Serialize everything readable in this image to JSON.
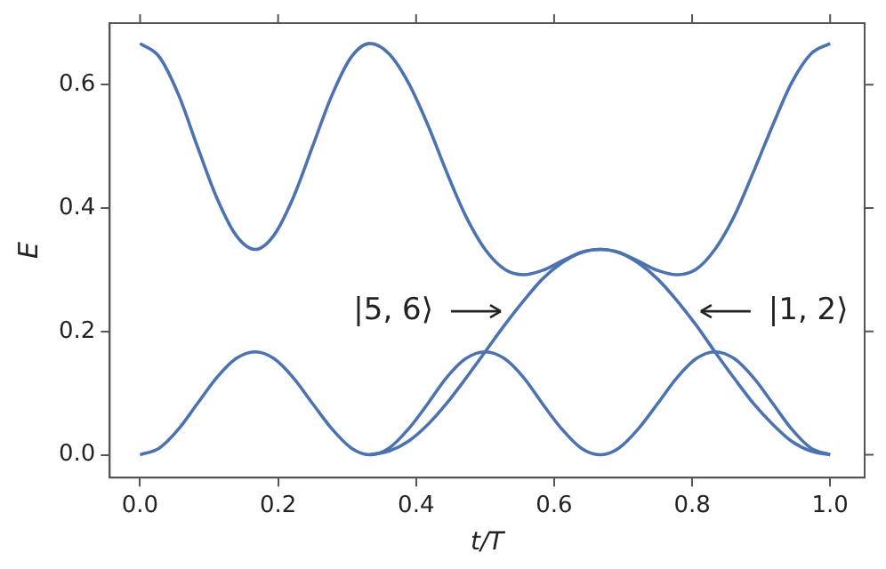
{
  "chart_data": {
    "type": "line",
    "xlabel": "t/T",
    "ylabel": "E",
    "x": [
      0,
      0.028,
      0.056,
      0.083,
      0.111,
      0.139,
      0.167,
      0.194,
      0.222,
      0.25,
      0.278,
      0.306,
      0.333,
      0.361,
      0.389,
      0.417,
      0.444,
      0.472,
      0.5,
      0.528,
      0.556,
      0.583,
      0.611,
      0.639,
      0.667,
      0.694,
      0.722,
      0.75,
      0.778,
      0.806,
      0.833,
      0.861,
      0.889,
      0.917,
      0.944,
      0.972,
      1
    ],
    "series": [
      {
        "color": "#4c72b0",
        "values": [
          0.667,
          0.645,
          0.583,
          0.5,
          0.417,
          0.356,
          0.333,
          0.356,
          0.417,
          0.5,
          0.583,
          0.645,
          0.667,
          0.65,
          0.603,
          0.535,
          0.459,
          0.387,
          0.333,
          0.301,
          0.292,
          0.299,
          0.314,
          0.328,
          0.333,
          0.328,
          0.314,
          0.299,
          0.292,
          0.301,
          0.333,
          0.387,
          0.459,
          0.535,
          0.603,
          0.65,
          0.667
        ]
      },
      {
        "color": "#4c72b0",
        "x": [
          0.333,
          0.361,
          0.389,
          0.417,
          0.444,
          0.472,
          0.5,
          0.528,
          0.556,
          0.583,
          0.611,
          0.639,
          0.667,
          0.694,
          0.722,
          0.75,
          0.778,
          0.806,
          0.833,
          0.861,
          0.889,
          0.917,
          0.944,
          0.972,
          1
        ],
        "values": [
          0,
          0.006,
          0.022,
          0.049,
          0.083,
          0.124,
          0.167,
          0.21,
          0.25,
          0.285,
          0.311,
          0.328,
          0.333,
          0.328,
          0.311,
          0.285,
          0.25,
          0.21,
          0.167,
          0.124,
          0.083,
          0.049,
          0.022,
          0.006,
          0
        ]
      },
      {
        "color": "#4c72b0",
        "values": [
          0,
          0.011,
          0.042,
          0.083,
          0.125,
          0.156,
          0.167,
          0.156,
          0.125,
          0.083,
          0.042,
          0.011,
          0,
          0.011,
          0.042,
          0.083,
          0.125,
          0.156,
          0.167,
          0.156,
          0.125,
          0.083,
          0.042,
          0.011,
          0,
          0.011,
          0.042,
          0.083,
          0.125,
          0.156,
          0.167,
          0.156,
          0.125,
          0.083,
          0.042,
          0.011,
          0
        ]
      }
    ],
    "xlim": [
      -0.044,
      1.05
    ],
    "ylim": [
      -0.037,
      0.7
    ],
    "xticks": [
      {
        "value": 0,
        "label": "0.0"
      },
      {
        "value": 0.2,
        "label": "0.2"
      },
      {
        "value": 0.4,
        "label": "0.4"
      },
      {
        "value": 0.6,
        "label": "0.6"
      },
      {
        "value": 0.8,
        "label": "0.8"
      },
      {
        "value": 1,
        "label": "1.0"
      }
    ],
    "yticks": [
      {
        "value": 0,
        "label": "0.0"
      },
      {
        "value": 0.2,
        "label": "0.2"
      },
      {
        "value": 0.4,
        "label": "0.4"
      },
      {
        "value": 0.6,
        "label": "0.6"
      }
    ],
    "annotations": [
      "|5, 6⟩",
      "|1, 2⟩"
    ],
    "grid": false,
    "legend": false,
    "marker": "none",
    "line_style": "solid"
  }
}
